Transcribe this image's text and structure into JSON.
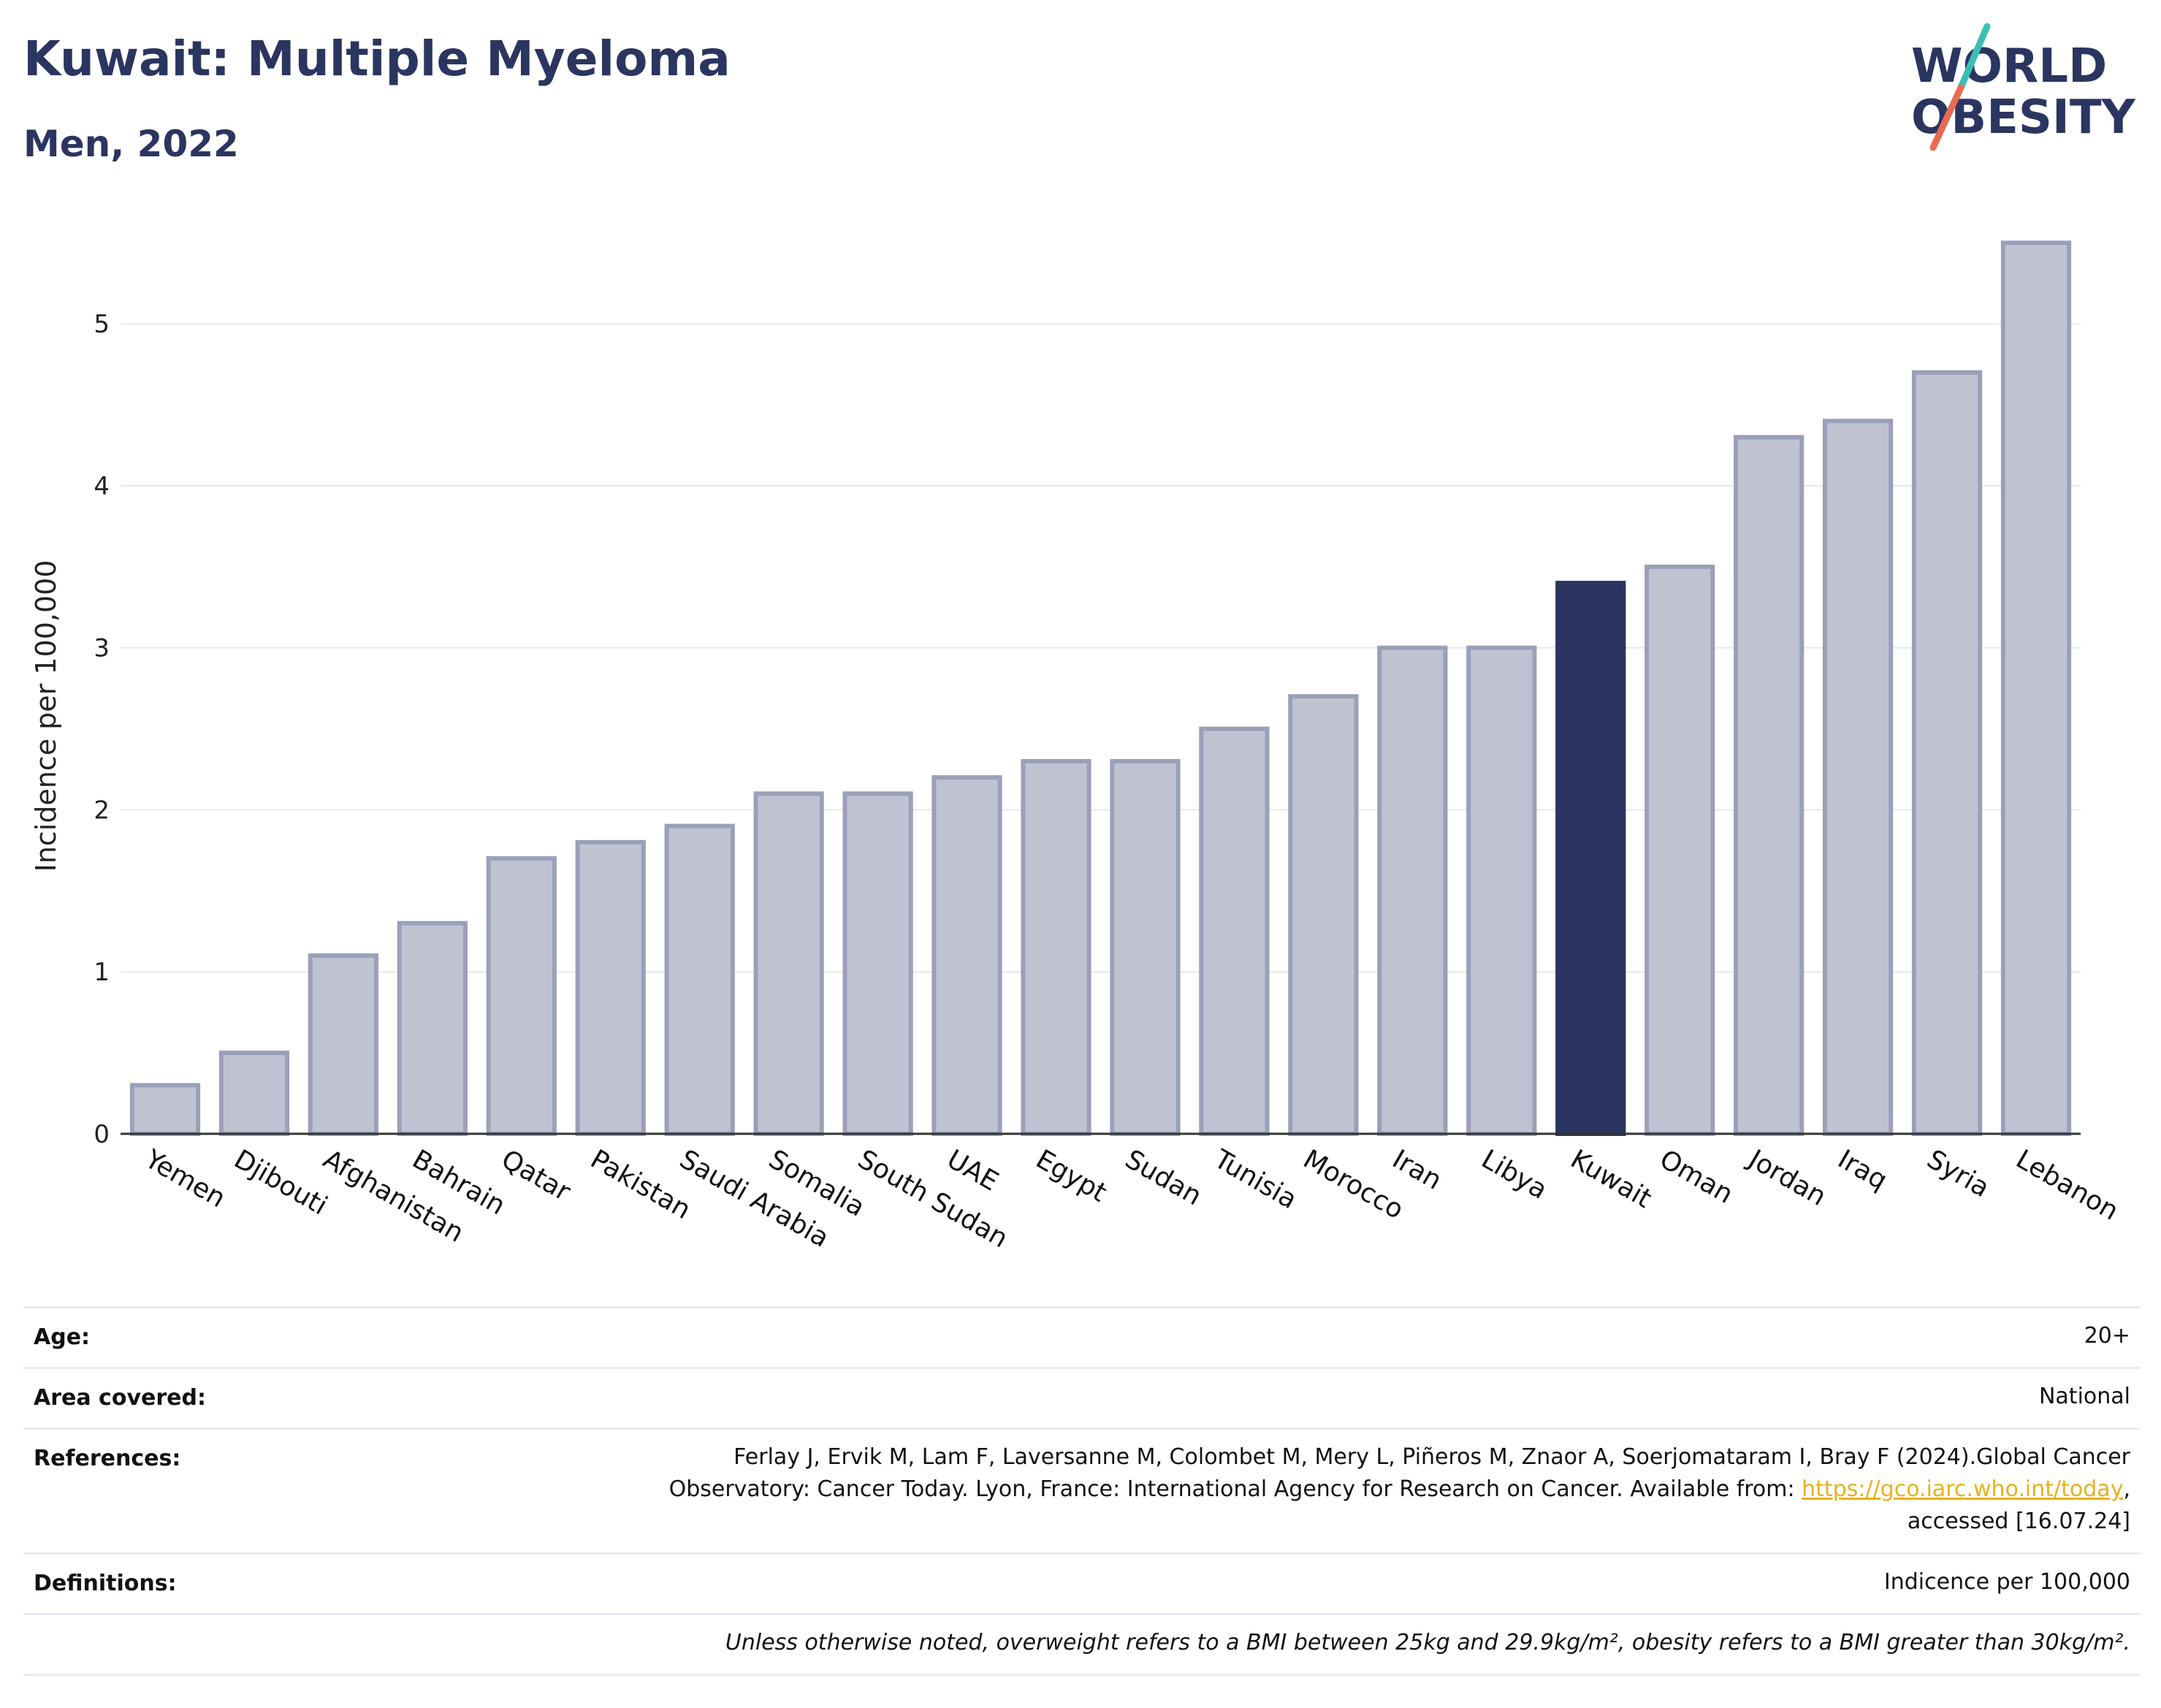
{
  "header": {
    "title": "Kuwait: Multiple Myeloma",
    "subtitle": "Men, 2022"
  },
  "logo": {
    "line1": "WORLD",
    "line2": "OBESITY",
    "colors": {
      "text": "#2a3560",
      "slash_top": "#3bbfb3",
      "slash_bottom": "#e96a50"
    }
  },
  "chart_data": {
    "type": "bar",
    "title": "Kuwait: Multiple Myeloma",
    "subtitle": "Men, 2022",
    "ylabel": "Incidence per 100,000",
    "xlabel": "",
    "ylim": [
      0,
      5.7
    ],
    "yticks": [
      0,
      1,
      2,
      3,
      4,
      5
    ],
    "grid": true,
    "highlight": "Kuwait",
    "colors": {
      "bar": "#bfc3d1",
      "bar_edge": "#9aa0b8",
      "highlight": "#2a3560",
      "grid": "#e6e8ef"
    },
    "categories": [
      "Yemen",
      "Djibouti",
      "Afghanistan",
      "Bahrain",
      "Qatar",
      "Pakistan",
      "Saudi Arabia",
      "Somalia",
      "South Sudan",
      "UAE",
      "Egypt",
      "Sudan",
      "Tunisia",
      "Morocco",
      "Iran",
      "Libya",
      "Kuwait",
      "Oman",
      "Jordan",
      "Iraq",
      "Syria",
      "Lebanon"
    ],
    "values": [
      0.3,
      0.5,
      1.1,
      1.3,
      1.7,
      1.8,
      1.9,
      2.1,
      2.1,
      2.2,
      2.3,
      2.3,
      2.5,
      2.7,
      3.0,
      3.0,
      3.4,
      3.5,
      4.3,
      4.4,
      4.7,
      5.5
    ]
  },
  "info": {
    "age_label": "Age:",
    "age_value": "20+",
    "area_label": "Area covered:",
    "area_value": "National",
    "references_label": "References:",
    "references_line1": "Ferlay J, Ervik M, Lam F, Laversanne M, Colombet M, Mery L, Piñeros M, Znaor A, Soerjomataram I, Bray F (2024).Global Cancer",
    "references_line2_pre": "Observatory: Cancer Today. Lyon, France: International Agency for Research on Cancer. Available from: ",
    "references_link": "https://gco.iarc.who.int/today",
    "references_line2_post": ",",
    "references_line3": "accessed [16.07.24]",
    "definitions_label": "Definitions:",
    "definitions_value": "Indicence per 100,000",
    "note": "Unless otherwise noted, overweight refers to a BMI between 25kg and 29.9kg/m², obesity refers to a BMI greater than 30kg/m²."
  }
}
